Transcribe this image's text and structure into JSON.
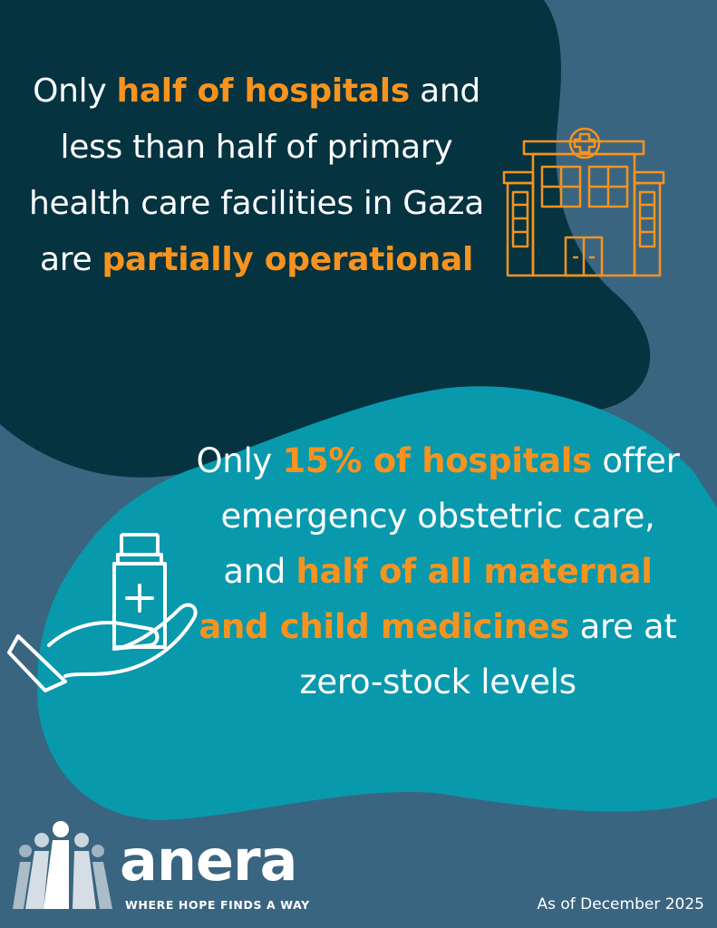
{
  "colors": {
    "background": "#3a6580",
    "dark_blob": "#053340",
    "teal_blob": "#0899ad",
    "accent": "#f7931e",
    "text": "#ffffff"
  },
  "stat_hospitals": {
    "t1": "Only ",
    "h1": "half of hospitals",
    "t2": " and less than half of primary health care facilities in Gaza are ",
    "h2": "partially operational"
  },
  "stat_maternal": {
    "t1": "Only ",
    "h1": "15% of hospitals",
    "t2": " offer emergency obstetric care, and ",
    "h2": "half of all maternal and child medicines",
    "t3": " are at zero-stock levels"
  },
  "icons": {
    "hospital": "hospital-building-icon",
    "medicine": "hand-holding-medicine-bottle-icon"
  },
  "logo": {
    "word": "anera",
    "tagline": "WHERE HOPE FINDS A WAY"
  },
  "footer": {
    "date_note": "As of December 2025"
  }
}
